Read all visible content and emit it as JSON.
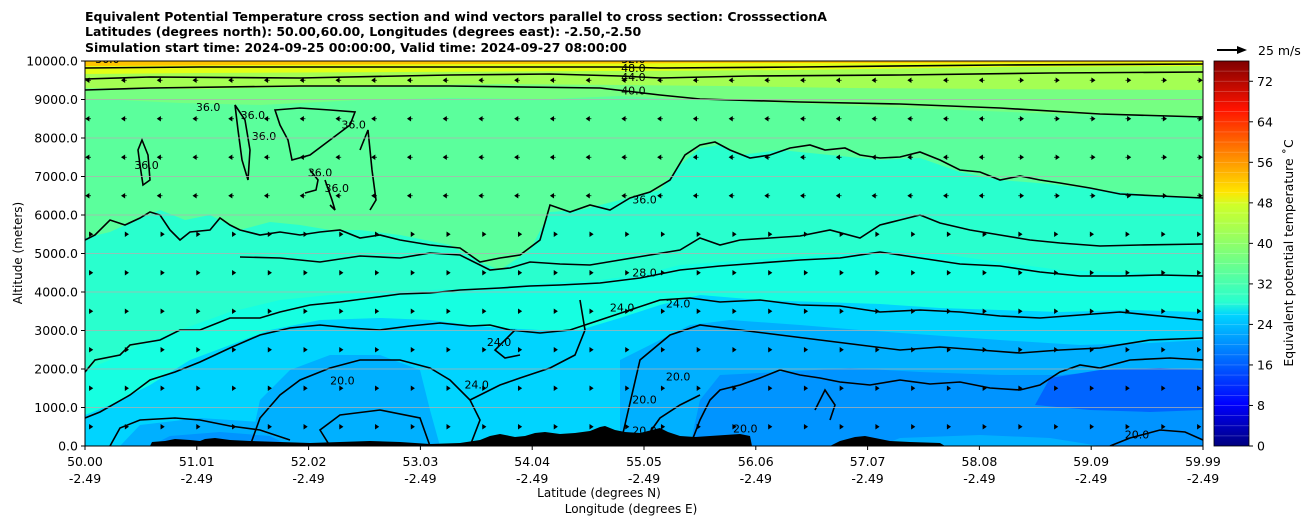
{
  "chart_data": {
    "type": "heatmap",
    "title_lines": [
      "Equivalent Potential Temperature cross section and wind vectors parallel to cross section: CrosssectionA",
      "Latitudes (degrees north): 50.00,60.00, Longitudes (degrees east): -2.50,-2.50",
      "Simulation start time: 2024-09-25 00:00:00, Valid time: 2024-09-27 08:00:00"
    ],
    "xlabel_lines": [
      "Latitude (degrees N)",
      "Longitude (degrees E)"
    ],
    "ylabel": "Altitude (meters)",
    "x_ticks": [
      {
        "lat": "50.00",
        "lon": "-2.49"
      },
      {
        "lat": "51.01",
        "lon": "-2.49"
      },
      {
        "lat": "52.02",
        "lon": "-2.49"
      },
      {
        "lat": "53.03",
        "lon": "-2.49"
      },
      {
        "lat": "54.04",
        "lon": "-2.49"
      },
      {
        "lat": "55.05",
        "lon": "-2.49"
      },
      {
        "lat": "56.06",
        "lon": "-2.49"
      },
      {
        "lat": "57.07",
        "lon": "-2.49"
      },
      {
        "lat": "58.08",
        "lon": "-2.49"
      },
      {
        "lat": "59.09",
        "lon": "-2.49"
      },
      {
        "lat": "59.99",
        "lon": "-2.49"
      }
    ],
    "y_ticks": [
      0,
      1000,
      2000,
      3000,
      4000,
      5000,
      6000,
      7000,
      8000,
      9000,
      10000
    ],
    "y_tick_labels": [
      "0.0",
      "1000.0",
      "2000.0",
      "3000.0",
      "4000.0",
      "5000.0",
      "6000.0",
      "7000.0",
      "8000.0",
      "9000.0",
      "10000.0"
    ],
    "xlim": [
      50.0,
      59.99
    ],
    "ylim": [
      0,
      10000
    ],
    "grid": "horizontal",
    "colorbar": {
      "label": "Equivalent potential temperature $^\\circ$C",
      "label_display": "Equivalent potential temperature ˚C",
      "range": [
        0,
        76
      ],
      "step": 2,
      "ticks": [
        0,
        8,
        16,
        24,
        32,
        40,
        48,
        56,
        64,
        72
      ],
      "colormap": "jet"
    },
    "wind_key": {
      "label": "25 m/s",
      "speed": 25
    },
    "contour_labels": [
      {
        "text": "36.0",
        "lat": 50.2,
        "alt": 9950
      },
      {
        "text": "32.0",
        "lat": 54.9,
        "alt": 9950
      },
      {
        "text": "48.0",
        "lat": 54.9,
        "alt": 9720
      },
      {
        "text": "44.0",
        "lat": 54.9,
        "alt": 9480
      },
      {
        "text": "40.0",
        "lat": 54.9,
        "alt": 9130
      },
      {
        "text": "36.0",
        "lat": 51.1,
        "alt": 8700
      },
      {
        "text": "36.0",
        "lat": 51.5,
        "alt": 8500
      },
      {
        "text": "36.0",
        "lat": 52.4,
        "alt": 8250
      },
      {
        "text": "36.0",
        "lat": 50.55,
        "alt": 7200
      },
      {
        "text": "36.0",
        "lat": 51.6,
        "alt": 7950
      },
      {
        "text": "36.0",
        "lat": 52.1,
        "alt": 7000
      },
      {
        "text": "36.0",
        "lat": 52.25,
        "alt": 6600
      },
      {
        "text": "36.0",
        "lat": 55.0,
        "alt": 6300
      },
      {
        "text": "28.0",
        "lat": 55.0,
        "alt": 4400
      },
      {
        "text": "24.0",
        "lat": 55.3,
        "alt": 3600
      },
      {
        "text": "24.0",
        "lat": 54.8,
        "alt": 3500
      },
      {
        "text": "24.0",
        "lat": 53.7,
        "alt": 2600
      },
      {
        "text": "24.0",
        "lat": 53.5,
        "alt": 1500
      },
      {
        "text": "20.0",
        "lat": 52.3,
        "alt": 1600
      },
      {
        "text": "20.0",
        "lat": 55.3,
        "alt": 1700
      },
      {
        "text": "20.0",
        "lat": 55.0,
        "alt": 1100
      },
      {
        "text": "20.0",
        "lat": 55.0,
        "alt": 300
      },
      {
        "text": "20.0",
        "lat": 55.9,
        "alt": 350
      },
      {
        "text": "20.0",
        "lat": 59.4,
        "alt": 200
      }
    ],
    "temperature_bands": [
      {
        "alt": 0,
        "theta": 20
      },
      {
        "alt": 1000,
        "theta": 19
      },
      {
        "alt": 2000,
        "theta": 22
      },
      {
        "alt": 3000,
        "theta": 25
      },
      {
        "alt": 4000,
        "theta": 29
      },
      {
        "alt": 5000,
        "theta": 33
      },
      {
        "alt": 6000,
        "theta": 35
      },
      {
        "alt": 7000,
        "theta": 37
      },
      {
        "alt": 8000,
        "theta": 38
      },
      {
        "alt": 9000,
        "theta": 40
      },
      {
        "alt": 10000,
        "theta": 48
      }
    ]
  }
}
